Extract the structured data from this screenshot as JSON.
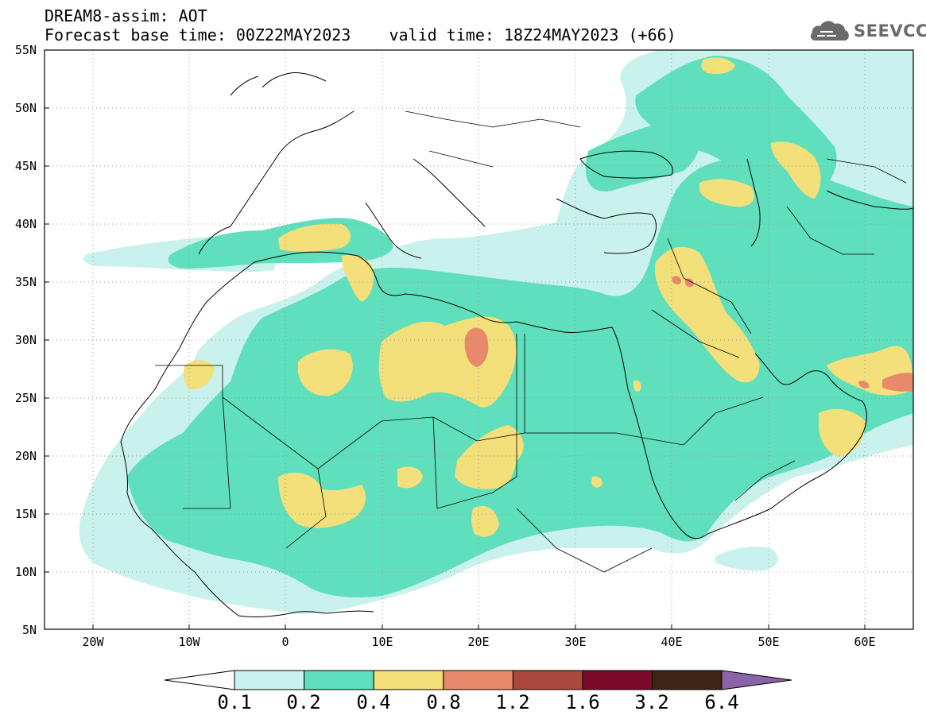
{
  "header": {
    "line1": "DREAM8-assim: AOT",
    "line2": "Forecast base time: 00Z22MAY2023    valid time: 18Z24MAY2023 (+66)"
  },
  "logo": {
    "text": "SEEVCCC",
    "icon": "cloud-logo-icon"
  },
  "axes": {
    "lat_labels": [
      "55N",
      "50N",
      "45N",
      "40N",
      "35N",
      "30N",
      "25N",
      "20N",
      "15N",
      "10N",
      "5N"
    ],
    "lon_labels": [
      "20W",
      "10W",
      "0",
      "10E",
      "20E",
      "30E",
      "40E",
      "50E",
      "60E"
    ],
    "lat_range": [
      5,
      55
    ],
    "lon_range": [
      -25,
      65
    ],
    "grid": "dotted"
  },
  "colorbar": {
    "labels": [
      "0.1",
      "0.2",
      "0.4",
      "0.8",
      "1.2",
      "1.6",
      "3.2",
      "6.4"
    ],
    "colors": [
      "#c9f2ec",
      "#5fdfbc",
      "#f3e07a",
      "#e7896a",
      "#a8493b",
      "#7a0a2a",
      "#3b2414",
      "#8b63a8"
    ]
  }
}
